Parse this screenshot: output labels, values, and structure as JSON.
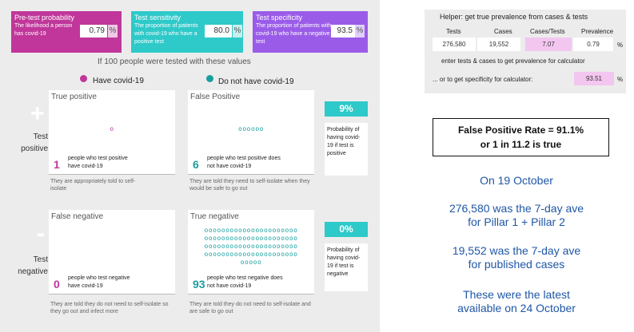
{
  "inputs": {
    "prevalence": {
      "title": "Pre-test probability",
      "value": "0.79",
      "unit": "%",
      "description": "The likelihood a person has covid-19"
    },
    "sensitivity": {
      "title": "Test sensitivity",
      "value": "80.0",
      "unit": "%",
      "description": "The proportion of patients with covid-19 who have a positive test"
    },
    "specificity": {
      "title": "Test specificity",
      "value": "93.5",
      "unit": "%",
      "description": "The proportion of patients with covid-19 who have a negative test"
    }
  },
  "caption": "If 100 people were tested with these values",
  "legend": {
    "have": "Have covid-19",
    "not_have": "Do not have covid-19",
    "have_color": "#c0369a",
    "not_have_color": "#1a9e9e"
  },
  "rows": {
    "positive_label_1": "Test",
    "positive_label_2": "positive",
    "negative_label_1": "Test",
    "negative_label_2": "negative",
    "positive_sign": "+",
    "negative_sign": "-"
  },
  "panels": {
    "true_positive": {
      "title": "True positive",
      "count": "1",
      "description": "people who test positive have covid-19",
      "dots": [
        "o"
      ],
      "note": "They are appropriately told to self-isolate"
    },
    "false_positive": {
      "title": "False Positive",
      "count": "6",
      "description": "people who test positive does not have covid-19",
      "dots": [
        "oooooo"
      ],
      "note": "They are told they need to self-isolate when they would be safe to go out"
    },
    "false_negative": {
      "title": "False negative",
      "count": "0",
      "description": "people who test negative have covid-19",
      "dots": [],
      "note": "They are told they do not need to self-isolate so they go out and infect more"
    },
    "true_negative": {
      "title": "True negative",
      "count": "93",
      "description": "people who test negative does not have covid-19",
      "dots": [
        "oooooooooooooooooooooo",
        "oooooooooooooooooooooo",
        "oooooooooooooooooooooo",
        "oooooooooooooooooooooo",
        "ooooo"
      ],
      "note": "They are told they do not need to self-isolate and are safe to go out"
    }
  },
  "probabilities": {
    "positive": {
      "value": "9%",
      "note": "Probability of having covid-19 if test is positive"
    },
    "negative": {
      "value": "0%",
      "note": "Probability of having covid-19 if test is negative"
    }
  },
  "helper": {
    "title": "Helper: get true prevalence from cases & tests",
    "headers": [
      "Tests",
      "Cases",
      "Cases/Tests",
      "Prevalence"
    ],
    "values": [
      "276,580",
      "19,552",
      "7.07",
      "0.79"
    ],
    "unit": "%",
    "instruction_1": "enter tests & cases to get prevalence for calculator",
    "instruction_2": "... or to get specificity for calculator:",
    "specificity": "93.51",
    "specificity_unit": "%"
  },
  "fpr": {
    "line1": "False Positive Rate = 91.1%",
    "line2": "or 1 in 11.2 is true"
  },
  "notes": {
    "n1": "On 19 October",
    "n2a": "276,580 was the 7-day ave",
    "n2b": "for Pillar 1 + Pillar 2",
    "n3a": "19,552 was the 7-day ave",
    "n3b": "for published cases",
    "n4a": "These were the latest",
    "n4b": "available on 24 October"
  }
}
